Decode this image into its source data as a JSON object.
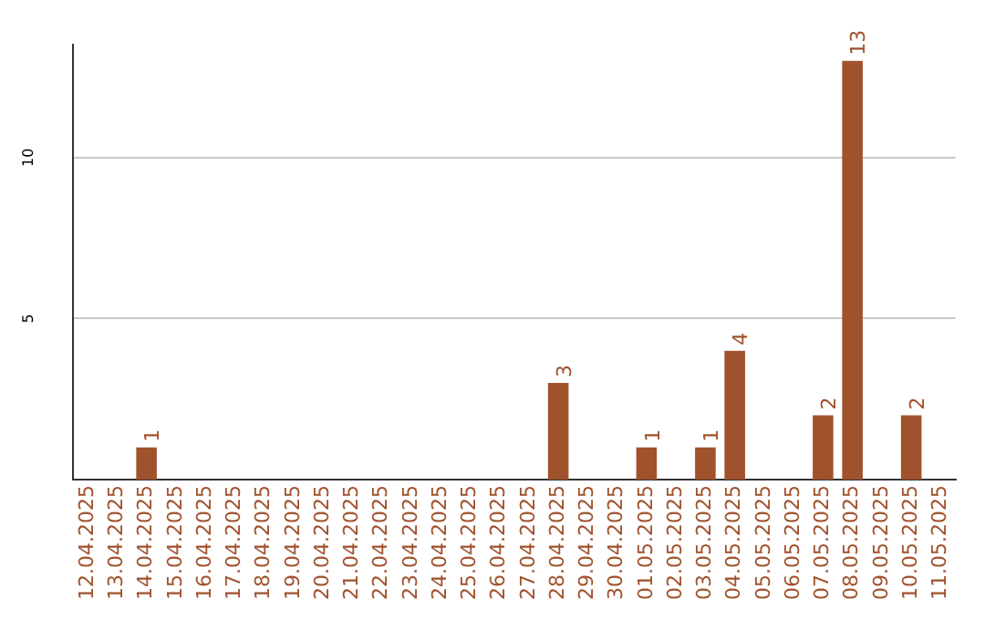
{
  "chart_data": {
    "type": "bar",
    "categories": [
      "12.04.2025",
      "13.04.2025",
      "14.04.2025",
      "15.04.2025",
      "16.04.2025",
      "17.04.2025",
      "18.04.2025",
      "19.04.2025",
      "20.04.2025",
      "21.04.2025",
      "22.04.2025",
      "23.04.2025",
      "24.04.2025",
      "25.04.2025",
      "26.04.2025",
      "27.04.2025",
      "28.04.2025",
      "29.04.2025",
      "30.04.2025",
      "01.05.2025",
      "02.05.2025",
      "03.05.2025",
      "04.05.2025",
      "05.05.2025",
      "06.05.2025",
      "07.05.2025",
      "08.05.2025",
      "09.05.2025",
      "10.05.2025",
      "11.05.2025"
    ],
    "values": [
      null,
      null,
      1,
      null,
      null,
      null,
      null,
      null,
      null,
      null,
      null,
      null,
      null,
      null,
      null,
      null,
      3,
      null,
      null,
      1,
      null,
      1,
      4,
      null,
      null,
      2,
      13,
      null,
      2,
      null
    ],
    "color": "#a0522d",
    "ylim": [
      0,
      13.5
    ],
    "yticks": [
      5,
      10
    ],
    "grid": "y",
    "data_labels": true
  }
}
